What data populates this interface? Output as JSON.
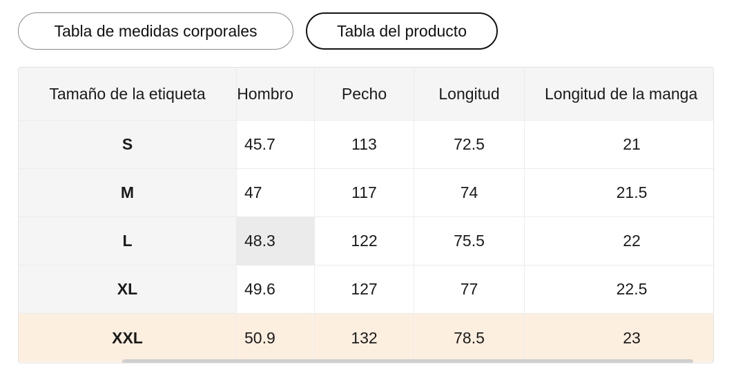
{
  "tabs": {
    "body_measurements": "Tabla de medidas corporales",
    "product": "Tabla del producto"
  },
  "table": {
    "headers": [
      "Tamaño de la etiqueta",
      "Hombro",
      "Pecho",
      "Longitud",
      "Longitud de la manga"
    ],
    "rows": [
      [
        "S",
        "45.7",
        "113",
        "72.5",
        "21"
      ],
      [
        "M",
        "47",
        "117",
        "74",
        "21.5"
      ],
      [
        "L",
        "48.3",
        "122",
        "75.5",
        "22"
      ],
      [
        "XL",
        "49.6",
        "127",
        "77",
        "22.5"
      ],
      [
        "XXL",
        "50.9",
        "132",
        "78.5",
        "23"
      ]
    ],
    "highlight_color": "#fdefdf",
    "header_bg": "#f5f5f5"
  }
}
